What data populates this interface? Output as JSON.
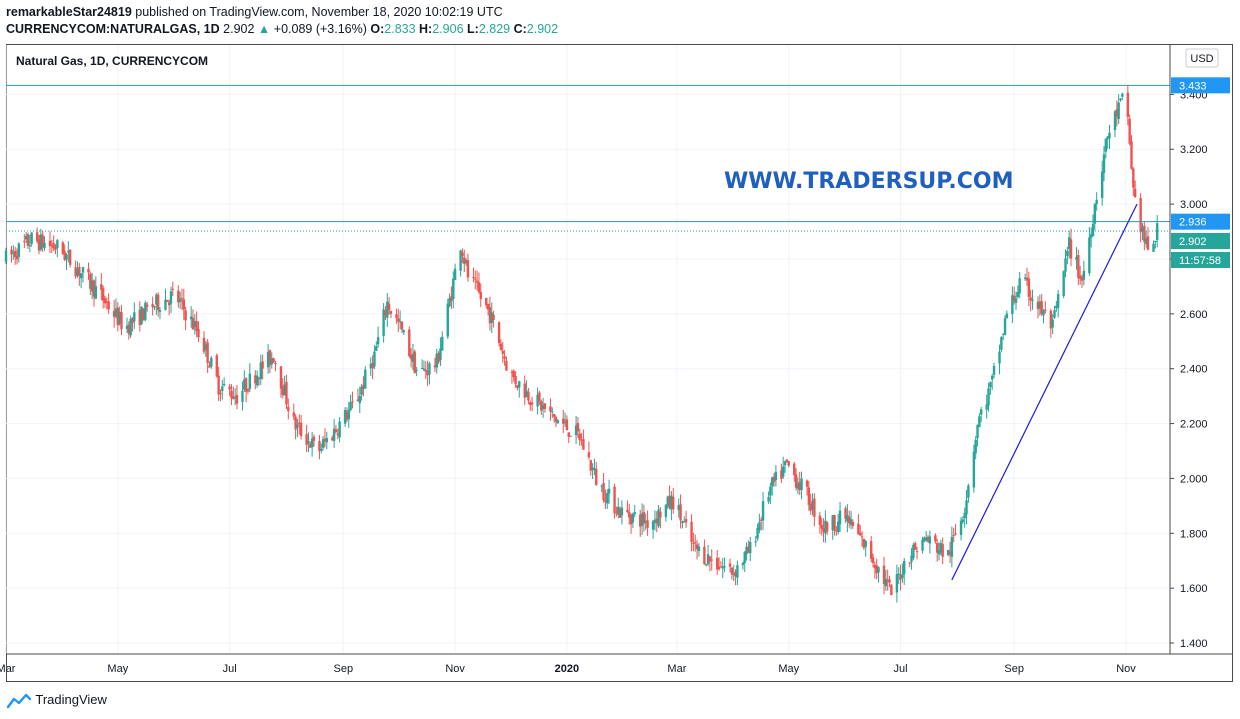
{
  "header": {
    "user": "remarkableStar24819",
    "published": " published on TradingView.com, November 18, 2020 10:02:19 UTC",
    "symbol": "CURRENCYCOM:NATURALGAS, 1D",
    "last": "2.902",
    "change": "+0.089 (+3.16%)",
    "o_label": "O:",
    "o": "2.833",
    "h_label": "H:",
    "h": "2.906",
    "l_label": "L:",
    "l": "2.829",
    "c_label": "C:",
    "c": "2.902"
  },
  "legend_title": "Natural Gas, 1D, CURRENCYCOM",
  "watermark": "WWW.TRADERSUP.COM",
  "currency": "USD",
  "footer_logo": "TradingView",
  "colors": {
    "up": "#26a69a",
    "down": "#ef5350",
    "hline": "#2a9bb0",
    "trendline": "#1a1ae6",
    "watermark": "#1f5fbf",
    "badge_blue": "#2196f3"
  },
  "price_badges": {
    "resistance": "3.433",
    "support": "2.936",
    "last": "2.902",
    "countdown": "11:57:58"
  },
  "chart_data": {
    "type": "candlestick",
    "title": "Natural Gas, 1D, CURRENCYCOM",
    "y_ticks": [
      1.4,
      1.6,
      1.8,
      2.0,
      2.2,
      2.4,
      2.6,
      2.8,
      3.0,
      3.2,
      3.4
    ],
    "y_tick_labels": [
      "1.400",
      "1.600",
      "1.800",
      "2.000",
      "2.200",
      "2.400",
      "2.600",
      "2.800",
      "3.000",
      "3.200",
      "3.400"
    ],
    "ylim": [
      1.36,
      3.58
    ],
    "x_range": [
      "2019-03-01",
      "2020-11-25"
    ],
    "x_ticks": [
      {
        "label": "Mar",
        "date": "2019-03-01"
      },
      {
        "label": "May",
        "date": "2019-05-01"
      },
      {
        "label": "Jul",
        "date": "2019-07-01"
      },
      {
        "label": "Sep",
        "date": "2019-09-01"
      },
      {
        "label": "Nov",
        "date": "2019-11-01"
      },
      {
        "label": "2020",
        "date": "2020-01-01"
      },
      {
        "label": "Mar",
        "date": "2020-03-01"
      },
      {
        "label": "May",
        "date": "2020-05-01"
      },
      {
        "label": "Jul",
        "date": "2020-07-01"
      },
      {
        "label": "Sep",
        "date": "2020-09-01"
      },
      {
        "label": "Nov",
        "date": "2020-11-01"
      }
    ],
    "price_path": [
      [
        "2019-03-01",
        2.8
      ],
      [
        "2019-03-15",
        2.87
      ],
      [
        "2019-03-30",
        2.84
      ],
      [
        "2019-04-20",
        2.68
      ],
      [
        "2019-05-05",
        2.55
      ],
      [
        "2019-05-20",
        2.63
      ],
      [
        "2019-06-01",
        2.67
      ],
      [
        "2019-06-15",
        2.52
      ],
      [
        "2019-06-25",
        2.34
      ],
      [
        "2019-07-05",
        2.3
      ],
      [
        "2019-07-15",
        2.38
      ],
      [
        "2019-07-25",
        2.45
      ],
      [
        "2019-08-05",
        2.2
      ],
      [
        "2019-08-18",
        2.1
      ],
      [
        "2019-08-28",
        2.18
      ],
      [
        "2019-09-08",
        2.28
      ],
      [
        "2019-09-18",
        2.45
      ],
      [
        "2019-09-25",
        2.64
      ],
      [
        "2019-10-02",
        2.55
      ],
      [
        "2019-10-12",
        2.38
      ],
      [
        "2019-10-22",
        2.42
      ],
      [
        "2019-10-30",
        2.68
      ],
      [
        "2019-11-04",
        2.86
      ],
      [
        "2019-11-08",
        2.74
      ],
      [
        "2019-11-20",
        2.6
      ],
      [
        "2019-12-01",
        2.38
      ],
      [
        "2019-12-12",
        2.3
      ],
      [
        "2019-12-25",
        2.22
      ],
      [
        "2020-01-08",
        2.15
      ],
      [
        "2020-01-18",
        1.98
      ],
      [
        "2020-01-30",
        1.88
      ],
      [
        "2020-02-15",
        1.84
      ],
      [
        "2020-02-28",
        1.92
      ],
      [
        "2020-03-10",
        1.75
      ],
      [
        "2020-03-20",
        1.7
      ],
      [
        "2020-04-01",
        1.66
      ],
      [
        "2020-04-10",
        1.74
      ],
      [
        "2020-04-20",
        1.95
      ],
      [
        "2020-04-30",
        2.05
      ],
      [
        "2020-05-10",
        1.95
      ],
      [
        "2020-05-20",
        1.82
      ],
      [
        "2020-06-01",
        1.86
      ],
      [
        "2020-06-15",
        1.72
      ],
      [
        "2020-06-26",
        1.58
      ],
      [
        "2020-07-05",
        1.72
      ],
      [
        "2020-07-15",
        1.78
      ],
      [
        "2020-07-27",
        1.72
      ],
      [
        "2020-08-05",
        1.9
      ],
      [
        "2020-08-12",
        2.2
      ],
      [
        "2020-08-20",
        2.35
      ],
      [
        "2020-08-28",
        2.6
      ],
      [
        "2020-09-05",
        2.72
      ],
      [
        "2020-09-15",
        2.62
      ],
      [
        "2020-09-22",
        2.55
      ],
      [
        "2020-10-01",
        2.85
      ],
      [
        "2020-10-08",
        2.72
      ],
      [
        "2020-10-15",
        3.0
      ],
      [
        "2020-10-22",
        3.25
      ],
      [
        "2020-10-28",
        3.35
      ],
      [
        "2020-11-01",
        3.4
      ],
      [
        "2020-11-05",
        3.05
      ],
      [
        "2020-11-09",
        2.92
      ],
      [
        "2020-11-13",
        2.82
      ],
      [
        "2020-11-18",
        2.9
      ]
    ],
    "horizontal_lines": [
      {
        "price": 3.433,
        "style": "solid"
      },
      {
        "price": 2.936,
        "style": "solid"
      },
      {
        "price": 2.902,
        "style": "dotted"
      }
    ],
    "trendline": {
      "start": [
        "2020-07-29",
        1.63
      ],
      "end": [
        "2020-11-07",
        3.0
      ]
    }
  }
}
